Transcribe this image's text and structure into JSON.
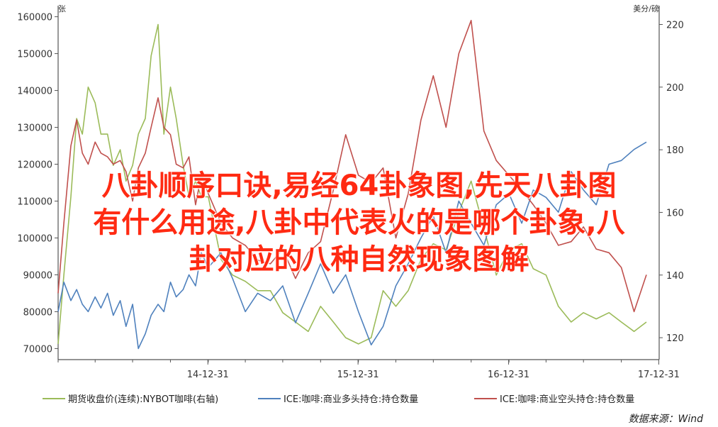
{
  "chart_data": {
    "type": "line",
    "left_axis_unit": "张",
    "right_axis_unit": "美分/磅",
    "y_left_ticks": [
      "70000",
      "80000",
      "90000",
      "100000",
      "110000",
      "120000",
      "130000",
      "140000",
      "150000",
      "160000"
    ],
    "y_left_range": [
      67000,
      163000
    ],
    "y_right_ticks": [
      "120",
      "140",
      "160",
      "180",
      "200",
      "220"
    ],
    "y_right_range": [
      113,
      226
    ],
    "x_ticks": [
      "14-12-31",
      "15-12-31",
      "16-12-31",
      "17-12-31"
    ],
    "x_range": [
      "2014-01-01",
      "2018-01-01"
    ],
    "series": [
      {
        "name": "期货收盘价(连续):NYBOT咖啡(右轴)",
        "axis": "right",
        "color": "#9bbb59",
        "x": [
          "2014-01-01",
          "2014-01-15",
          "2014-02-01",
          "2014-02-15",
          "2014-03-01",
          "2014-03-15",
          "2014-04-01",
          "2014-04-15",
          "2014-05-01",
          "2014-05-15",
          "2014-06-01",
          "2014-06-15",
          "2014-07-01",
          "2014-07-15",
          "2014-08-01",
          "2014-08-15",
          "2014-09-01",
          "2014-09-15",
          "2014-10-01",
          "2014-10-15",
          "2014-11-01",
          "2014-11-15",
          "2014-12-01",
          "2014-12-15",
          "2015-01-01",
          "2015-02-01",
          "2015-03-01",
          "2015-04-01",
          "2015-05-01",
          "2015-06-01",
          "2015-07-01",
          "2015-08-01",
          "2015-09-01",
          "2015-10-01",
          "2015-11-01",
          "2015-12-01",
          "2016-01-01",
          "2016-02-01",
          "2016-03-01",
          "2016-04-01",
          "2016-05-01",
          "2016-06-01",
          "2016-07-01",
          "2016-08-01",
          "2016-09-01",
          "2016-10-01",
          "2016-11-01",
          "2016-12-01",
          "2017-01-01",
          "2017-02-01",
          "2017-03-01",
          "2017-04-01",
          "2017-05-01",
          "2017-06-01",
          "2017-07-01",
          "2017-08-01",
          "2017-09-01",
          "2017-10-01",
          "2017-11-01",
          "2017-12-01"
        ],
        "values": [
          118,
          140,
          165,
          190,
          185,
          200,
          195,
          185,
          185,
          175,
          180,
          170,
          175,
          185,
          190,
          210,
          220,
          185,
          200,
          190,
          175,
          165,
          170,
          165,
          165,
          145,
          140,
          138,
          135,
          135,
          128,
          125,
          122,
          130,
          125,
          120,
          118,
          120,
          135,
          130,
          135,
          145,
          150,
          148,
          160,
          170,
          155,
          140,
          148,
          150,
          142,
          140,
          130,
          125,
          128,
          126,
          128,
          125,
          122,
          125
        ]
      },
      {
        "name": "ICE:咖啡:商业多头持仓:持仓数量",
        "axis": "left",
        "color": "#4f81bd",
        "x": [
          "2014-01-01",
          "2014-01-15",
          "2014-02-01",
          "2014-02-15",
          "2014-03-01",
          "2014-03-15",
          "2014-04-01",
          "2014-04-15",
          "2014-05-01",
          "2014-05-15",
          "2014-06-01",
          "2014-06-15",
          "2014-07-01",
          "2014-07-15",
          "2014-08-01",
          "2014-08-15",
          "2014-09-01",
          "2014-09-15",
          "2014-10-01",
          "2014-10-15",
          "2014-11-01",
          "2014-11-15",
          "2014-12-01",
          "2014-12-15",
          "2015-01-01",
          "2015-02-01",
          "2015-03-01",
          "2015-04-01",
          "2015-05-01",
          "2015-06-01",
          "2015-07-01",
          "2015-08-01",
          "2015-09-01",
          "2015-10-01",
          "2015-11-01",
          "2015-12-01",
          "2016-01-01",
          "2016-02-01",
          "2016-03-01",
          "2016-04-01",
          "2016-05-01",
          "2016-06-01",
          "2016-07-01",
          "2016-08-01",
          "2016-09-01",
          "2016-10-01",
          "2016-11-01",
          "2016-12-01",
          "2017-01-01",
          "2017-02-01",
          "2017-03-01",
          "2017-04-01",
          "2017-05-01",
          "2017-06-01",
          "2017-07-01",
          "2017-08-01",
          "2017-09-01",
          "2017-10-01",
          "2017-11-01",
          "2017-12-01"
        ],
        "values": [
          80000,
          88000,
          83000,
          86000,
          82000,
          80000,
          84000,
          81000,
          85000,
          79000,
          83000,
          76000,
          82000,
          70000,
          74000,
          79000,
          82000,
          80000,
          88000,
          84000,
          86000,
          90000,
          87000,
          96000,
          92000,
          96000,
          89000,
          80000,
          85000,
          83000,
          87000,
          77000,
          85000,
          93000,
          85000,
          90000,
          80000,
          71000,
          76000,
          87000,
          93000,
          100000,
          106000,
          96000,
          110000,
          104000,
          98000,
          109000,
          112000,
          104000,
          113000,
          111000,
          107000,
          118000,
          113000,
          109000,
          120000,
          121000,
          124000,
          126000
        ]
      },
      {
        "name": "ICE:咖啡:商业空头持仓:持仓数量",
        "axis": "left",
        "color": "#c0504d",
        "x": [
          "2014-01-01",
          "2014-01-15",
          "2014-02-01",
          "2014-02-15",
          "2014-03-01",
          "2014-03-15",
          "2014-04-01",
          "2014-04-15",
          "2014-05-01",
          "2014-05-15",
          "2014-06-01",
          "2014-06-15",
          "2014-07-01",
          "2014-07-15",
          "2014-08-01",
          "2014-08-15",
          "2014-09-01",
          "2014-09-15",
          "2014-10-01",
          "2014-10-15",
          "2014-11-01",
          "2014-11-15",
          "2014-12-01",
          "2014-12-15",
          "2015-01-01",
          "2015-02-01",
          "2015-03-01",
          "2015-04-01",
          "2015-05-01",
          "2015-06-01",
          "2015-07-01",
          "2015-08-01",
          "2015-09-01",
          "2015-10-01",
          "2015-11-01",
          "2015-12-01",
          "2016-01-01",
          "2016-02-01",
          "2016-03-01",
          "2016-04-01",
          "2016-05-01",
          "2016-06-01",
          "2016-07-01",
          "2016-08-01",
          "2016-09-01",
          "2016-10-01",
          "2016-11-01",
          "2016-12-01",
          "2017-01-01",
          "2017-02-01",
          "2017-03-01",
          "2017-04-01",
          "2017-05-01",
          "2017-06-01",
          "2017-07-01",
          "2017-08-01",
          "2017-09-01",
          "2017-10-01",
          "2017-11-01",
          "2017-12-01"
        ],
        "values": [
          85000,
          104000,
          125000,
          132000,
          123000,
          120000,
          126000,
          123000,
          122000,
          120000,
          121000,
          118000,
          110000,
          119000,
          123000,
          130000,
          138000,
          130000,
          128000,
          120000,
          119000,
          122000,
          109000,
          117000,
          112000,
          104000,
          100000,
          98000,
          94000,
          93000,
          97000,
          89000,
          96000,
          99000,
          113000,
          128000,
          117000,
          115000,
          119000,
          100000,
          112000,
          132000,
          144000,
          130000,
          150000,
          159000,
          129000,
          121000,
          117000,
          113000,
          109000,
          104000,
          98000,
          99000,
          103000,
          97000,
          96000,
          92000,
          80000,
          90000
        ]
      }
    ],
    "legend_position": "bottom",
    "source": "数据来源：Wind",
    "grid": false
  },
  "overlay_lines": [
    "八卦顺序口诀,易经64卦象图,先天八卦图",
    "有什么用途,八卦中代表火的是哪个卦象,八",
    "卦对应的八种自然现象图解"
  ]
}
